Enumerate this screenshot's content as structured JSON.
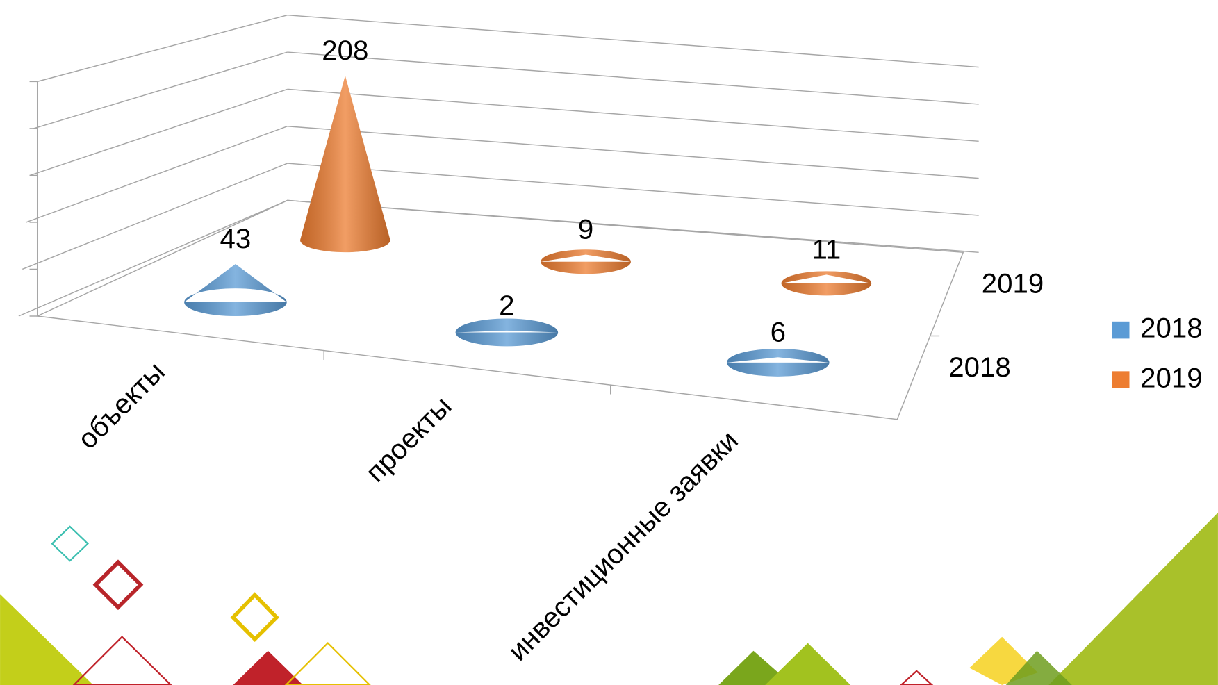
{
  "chart_data": {
    "type": "cone3d",
    "categories": [
      "объекты",
      "проекты",
      "инвестиционные заявки"
    ],
    "series": [
      {
        "name": "2018",
        "color": "#5b9bd5",
        "values": [
          43,
          2,
          6
        ]
      },
      {
        "name": "2019",
        "color": "#ed7d31",
        "values": [
          208,
          9,
          11
        ]
      }
    ],
    "ylim": [
      0,
      250
    ],
    "yticks": [
      0,
      50,
      100,
      150,
      200,
      250
    ],
    "grid": true,
    "legend": "right"
  }
}
